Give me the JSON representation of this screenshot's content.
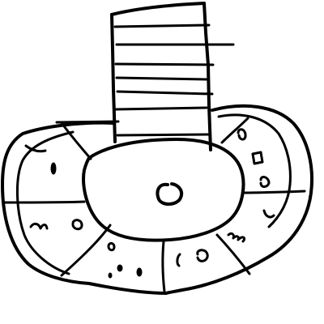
{
  "colors": {
    "background": "#ffffff",
    "ink": "#000000"
  }
}
